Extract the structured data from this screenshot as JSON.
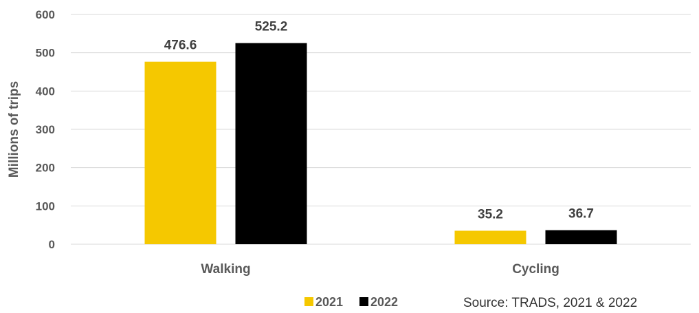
{
  "chart_data": {
    "type": "bar",
    "categories": [
      "Walking",
      "Cycling"
    ],
    "series": [
      {
        "name": "2021",
        "values": [
          476.6,
          35.2
        ],
        "color": "#f5c800"
      },
      {
        "name": "2022",
        "values": [
          525.2,
          36.7
        ],
        "color": "#000000"
      }
    ],
    "data_labels": [
      [
        "476.6",
        "35.2"
      ],
      [
        "525.2",
        "36.7"
      ]
    ],
    "title": "",
    "xlabel": "",
    "ylabel": "Millions of trips",
    "ylim": [
      0,
      600
    ],
    "yticks": [
      0,
      100,
      200,
      300,
      400,
      500,
      600
    ],
    "grid": true,
    "legend_position": "bottom"
  },
  "source_note": "Source: TRADS, 2021 & 2022"
}
